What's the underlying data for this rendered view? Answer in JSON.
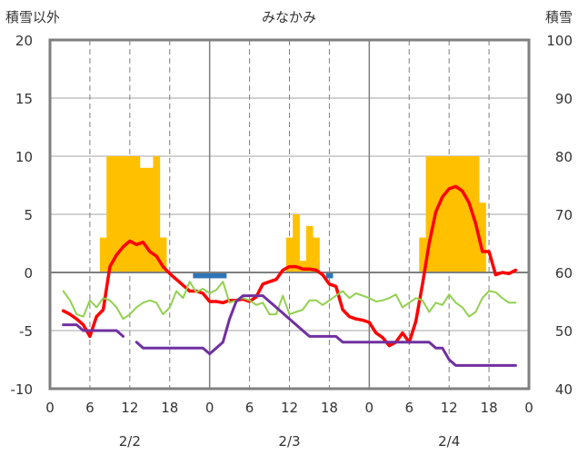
{
  "chart_data": {
    "type": "line",
    "title": "みなかみ",
    "ylabel_left": "積雪以外",
    "ylabel_right": "積雪",
    "ylim_left": [
      -10,
      20
    ],
    "ylim_right": [
      40,
      100
    ],
    "yticks_left": [
      "20",
      "15",
      "10",
      "5",
      "0",
      "-5",
      "-10"
    ],
    "yticks_right": [
      "100",
      "90",
      "80",
      "70",
      "60",
      "50",
      "40"
    ],
    "xlim": [
      0,
      72
    ],
    "xticks": [
      "0",
      "6",
      "12",
      "18",
      "0",
      "6",
      "12",
      "18",
      "0",
      "6",
      "12",
      "18",
      "0"
    ],
    "date_labels": [
      {
        "label": "2/2",
        "at": 12
      },
      {
        "label": "2/3",
        "at": 36
      },
      {
        "label": "2/4",
        "at": 60
      }
    ],
    "grid": "vertical-dashed-6h-solid-day, horizontal-5",
    "colors": {
      "snow_depth": "#ffc000",
      "snowfall": "#2e75b6",
      "temperature": "#ff0000",
      "humidity": "#92d050",
      "wind": "#7030a0",
      "axis": "#7f7f7f"
    },
    "series": [
      {
        "type": "bar",
        "axis": "left",
        "color": "#ffc000",
        "values": [
          [
            8,
            3
          ],
          [
            9,
            10
          ],
          [
            10,
            10
          ],
          [
            11,
            10
          ],
          [
            12,
            10
          ],
          [
            13,
            10
          ],
          [
            14,
            9
          ],
          [
            15,
            9
          ],
          [
            16,
            10
          ],
          [
            17,
            3
          ],
          [
            36,
            3
          ],
          [
            37,
            5
          ],
          [
            38,
            1
          ],
          [
            39,
            4
          ],
          [
            40,
            3
          ],
          [
            56,
            3
          ],
          [
            57,
            10
          ],
          [
            58,
            10
          ],
          [
            59,
            10
          ],
          [
            60,
            10
          ],
          [
            61,
            10
          ],
          [
            62,
            10
          ],
          [
            63,
            10
          ],
          [
            64,
            10
          ],
          [
            65,
            6
          ]
        ]
      },
      {
        "type": "bar",
        "axis": "left",
        "color": "#2e75b6",
        "values": [
          [
            22,
            -0.5
          ],
          [
            23,
            -0.5
          ],
          [
            24,
            -0.5
          ],
          [
            25,
            -0.5
          ],
          [
            26,
            -0.5
          ],
          [
            42,
            -0.5
          ]
        ]
      },
      {
        "type": "line",
        "axis": "left",
        "color": "#ff0000",
        "width": 3.5,
        "values": [
          [
            2,
            -3.3
          ],
          [
            3,
            -3.6
          ],
          [
            4,
            -4
          ],
          [
            5,
            -4.5
          ],
          [
            6,
            -5.5
          ],
          [
            7,
            -3.8
          ],
          [
            8,
            -3.2
          ],
          [
            9,
            0.5
          ],
          [
            10,
            1.5
          ],
          [
            11,
            2.2
          ],
          [
            12,
            2.7
          ],
          [
            13,
            2.4
          ],
          [
            14,
            2.6
          ],
          [
            15,
            1.8
          ],
          [
            16,
            1.4
          ],
          [
            17,
            0.5
          ],
          [
            18,
            -0.1
          ],
          [
            19,
            -0.6
          ],
          [
            20,
            -1.1
          ],
          [
            21,
            -1.6
          ],
          [
            22,
            -1.6
          ],
          [
            23,
            -1.8
          ],
          [
            24,
            -2.5
          ],
          [
            25,
            -2.5
          ],
          [
            26,
            -2.6
          ],
          [
            27,
            -2.4
          ],
          [
            28,
            -2.4
          ],
          [
            29,
            -2.3
          ],
          [
            30,
            -2.5
          ],
          [
            31,
            -2.1
          ],
          [
            32,
            -1
          ],
          [
            33,
            -0.8
          ],
          [
            34,
            -0.6
          ],
          [
            35,
            0.2
          ],
          [
            36,
            0.5
          ],
          [
            37,
            0.5
          ],
          [
            38,
            0.3
          ],
          [
            39,
            0.3
          ],
          [
            40,
            0.2
          ],
          [
            41,
            -0.2
          ],
          [
            42,
            -1
          ],
          [
            43,
            -1.2
          ],
          [
            44,
            -3.2
          ],
          [
            45,
            -3.8
          ],
          [
            46,
            -4
          ],
          [
            47,
            -4.1
          ],
          [
            48,
            -4.3
          ],
          [
            49,
            -5.2
          ],
          [
            50,
            -5.6
          ],
          [
            51,
            -6.3
          ],
          [
            52,
            -6
          ],
          [
            53,
            -5.2
          ],
          [
            54,
            -6
          ],
          [
            55,
            -4.2
          ],
          [
            56,
            -1
          ],
          [
            57,
            2.5
          ],
          [
            58,
            5.2
          ],
          [
            59,
            6.5
          ],
          [
            60,
            7.2
          ],
          [
            61,
            7.4
          ],
          [
            62,
            7
          ],
          [
            63,
            6
          ],
          [
            64,
            4.2
          ],
          [
            65,
            1.8
          ],
          [
            66,
            1.8
          ],
          [
            67,
            -0.2
          ],
          [
            68,
            0
          ],
          [
            69,
            -0.1
          ],
          [
            70,
            0.2
          ]
        ]
      },
      {
        "type": "line",
        "axis": "left",
        "color": "#92d050",
        "width": 2,
        "values": [
          [
            2,
            -1.6
          ],
          [
            3,
            -2.4
          ],
          [
            4,
            -3.6
          ],
          [
            5,
            -3.8
          ],
          [
            6,
            -2.4
          ],
          [
            7,
            -3
          ],
          [
            8,
            -2.2
          ],
          [
            9,
            -2.4
          ],
          [
            10,
            -3
          ],
          [
            11,
            -4
          ],
          [
            12,
            -3.6
          ],
          [
            13,
            -3
          ],
          [
            14,
            -2.6
          ],
          [
            15,
            -2.4
          ],
          [
            16,
            -2.6
          ],
          [
            17,
            -3.6
          ],
          [
            18,
            -3
          ],
          [
            19,
            -1.6
          ],
          [
            20,
            -2.2
          ],
          [
            21,
            -0.8
          ],
          [
            22,
            -1.7
          ],
          [
            23,
            -1.4
          ],
          [
            24,
            -1.8
          ],
          [
            25,
            -1.5
          ],
          [
            26,
            -0.8
          ],
          [
            27,
            -2.6
          ],
          [
            28,
            -2.4
          ],
          [
            29,
            -2.2
          ],
          [
            30,
            -2.4
          ],
          [
            31,
            -2.8
          ],
          [
            32,
            -2.6
          ],
          [
            33,
            -3.6
          ],
          [
            34,
            -3.6
          ],
          [
            35,
            -2
          ],
          [
            36,
            -3.6
          ],
          [
            37,
            -3.4
          ],
          [
            38,
            -3.2
          ],
          [
            39,
            -2.4
          ],
          [
            40,
            -2.4
          ],
          [
            41,
            -2.8
          ],
          [
            42,
            -2.4
          ],
          [
            43,
            -2
          ],
          [
            44,
            -1.6
          ],
          [
            45,
            -2.2
          ],
          [
            46,
            -1.8
          ],
          [
            47,
            -2
          ],
          [
            48,
            -2.2
          ],
          [
            49,
            -2.5
          ],
          [
            50,
            -2.4
          ],
          [
            51,
            -2.2
          ],
          [
            52,
            -1.9
          ],
          [
            53,
            -3
          ],
          [
            54,
            -2.6
          ],
          [
            55,
            -2.2
          ],
          [
            56,
            -2.4
          ],
          [
            57,
            -3.4
          ],
          [
            58,
            -2.6
          ],
          [
            59,
            -2.8
          ],
          [
            60,
            -1.9
          ],
          [
            61,
            -2.6
          ],
          [
            62,
            -3
          ],
          [
            63,
            -3.8
          ],
          [
            64,
            -3.4
          ],
          [
            65,
            -2.2
          ],
          [
            66,
            -1.6
          ],
          [
            67,
            -1.7
          ],
          [
            68,
            -2.2
          ],
          [
            69,
            -2.6
          ],
          [
            70,
            -2.6
          ]
        ]
      },
      {
        "type": "line",
        "axis": "right",
        "color": "#7030a0",
        "width": 3,
        "values": [
          [
            2,
            51
          ],
          [
            3,
            51
          ],
          [
            4,
            51
          ],
          [
            5,
            50
          ],
          [
            6,
            50
          ],
          [
            7,
            50
          ],
          [
            8,
            50
          ],
          [
            9,
            50
          ],
          [
            10,
            50
          ],
          [
            11,
            49
          ],
          [
            12,
            null
          ],
          [
            13,
            48
          ],
          [
            14,
            47
          ],
          [
            15,
            47
          ],
          [
            16,
            47
          ],
          [
            17,
            47
          ],
          [
            18,
            47
          ],
          [
            19,
            47
          ],
          [
            20,
            47
          ],
          [
            21,
            47
          ],
          [
            22,
            47
          ],
          [
            23,
            47
          ],
          [
            24,
            46
          ],
          [
            25,
            47
          ],
          [
            26,
            48
          ],
          [
            27,
            52
          ],
          [
            28,
            55
          ],
          [
            29,
            56
          ],
          [
            30,
            56
          ],
          [
            31,
            56
          ],
          [
            32,
            56
          ],
          [
            33,
            55
          ],
          [
            34,
            54
          ],
          [
            35,
            53
          ],
          [
            36,
            52
          ],
          [
            37,
            51
          ],
          [
            38,
            50
          ],
          [
            39,
            49
          ],
          [
            40,
            49
          ],
          [
            41,
            49
          ],
          [
            42,
            49
          ],
          [
            43,
            49
          ],
          [
            44,
            48
          ],
          [
            45,
            48
          ],
          [
            46,
            48
          ],
          [
            47,
            48
          ],
          [
            48,
            48
          ],
          [
            49,
            48
          ],
          [
            50,
            48
          ],
          [
            51,
            48
          ],
          [
            52,
            48
          ],
          [
            53,
            48
          ],
          [
            54,
            48
          ],
          [
            55,
            48
          ],
          [
            56,
            48
          ],
          [
            57,
            48
          ],
          [
            58,
            47
          ],
          [
            59,
            47
          ],
          [
            60,
            45
          ],
          [
            61,
            44
          ],
          [
            62,
            44
          ],
          [
            63,
            44
          ],
          [
            64,
            44
          ],
          [
            65,
            44
          ],
          [
            66,
            44
          ],
          [
            67,
            44
          ],
          [
            68,
            44
          ],
          [
            69,
            44
          ],
          [
            70,
            44
          ]
        ]
      }
    ]
  }
}
